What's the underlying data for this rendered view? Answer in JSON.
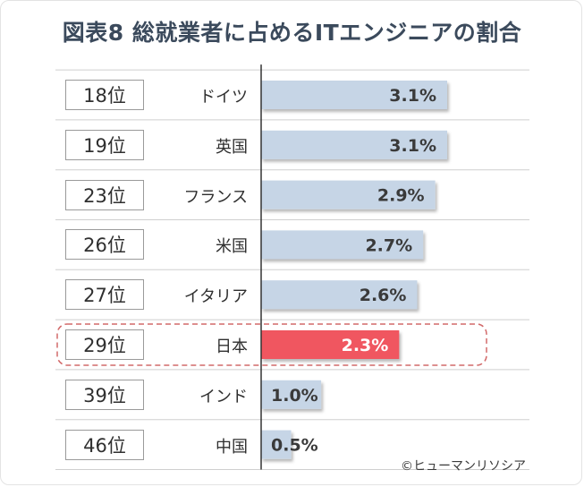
{
  "title": "図表8 総就業者に占めるITエンジニアの割合",
  "copyright": "©ヒューマンリソシア",
  "colors": {
    "bar_default": "#c6d5e6",
    "bar_highlight": "#f05660",
    "highlight_border": "#d26a6a",
    "title": "#3b4a5c"
  },
  "chart_data": {
    "type": "bar",
    "orientation": "horizontal",
    "title": "図表8 総就業者に占めるITエンジニアの割合",
    "categories": [
      "ドイツ",
      "英国",
      "フランス",
      "米国",
      "イタリア",
      "日本",
      "インド",
      "中国"
    ],
    "ranks": [
      "18位",
      "19位",
      "23位",
      "26位",
      "27位",
      "29位",
      "39位",
      "46位"
    ],
    "values": [
      3.1,
      3.1,
      2.9,
      2.7,
      2.6,
      2.3,
      1.0,
      0.5
    ],
    "labels": [
      "3.1%",
      "3.1%",
      "2.9%",
      "2.7%",
      "2.6%",
      "2.3%",
      "1.0%",
      "0.5%"
    ],
    "unit": "%",
    "highlight": "日本",
    "xlim": [
      0,
      3.5
    ]
  }
}
